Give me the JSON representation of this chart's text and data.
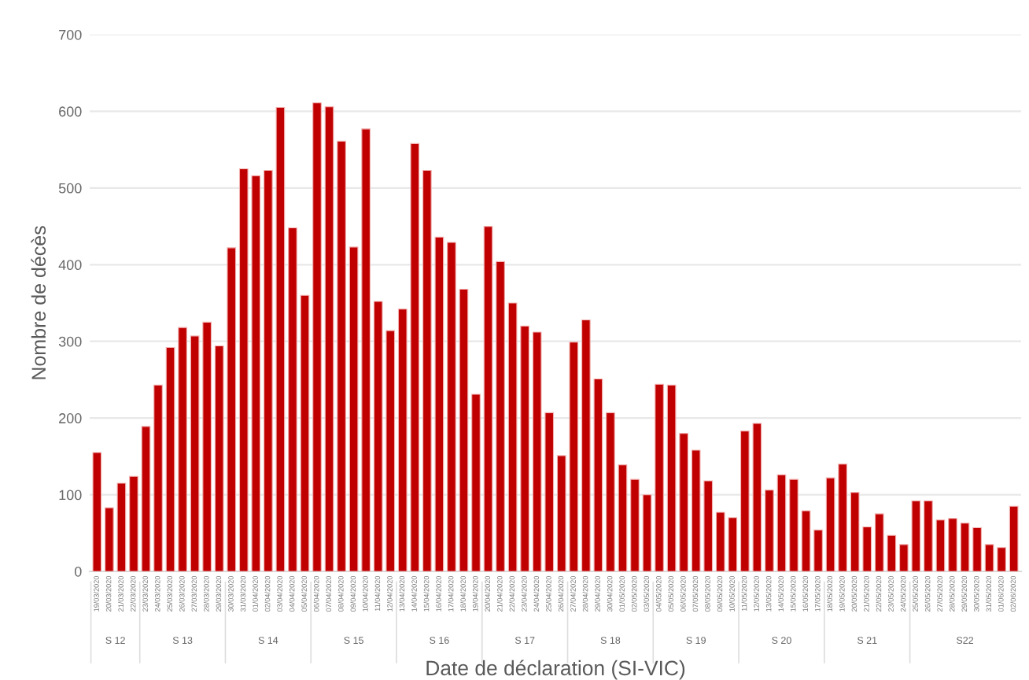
{
  "chart_data": {
    "type": "bar",
    "xlabel": "Date de déclaration (SI-VIC)",
    "ylabel": "Nombre de décès",
    "categories": [
      "19/03/2020",
      "20/03/2020",
      "21/03/2020",
      "22/03/2020",
      "23/03/2020",
      "24/03/2020",
      "25/03/2020",
      "26/03/2020",
      "27/03/2020",
      "28/03/2020",
      "29/03/2020",
      "30/03/2020",
      "31/03/2020",
      "01/04/2020",
      "02/04/2020",
      "03/04/2020",
      "04/04/2020",
      "05/04/2020",
      "06/04/2020",
      "07/04/2020",
      "08/04/2020",
      "09/04/2020",
      "10/04/2020",
      "11/04/2020",
      "12/04/2020",
      "13/04/2020",
      "14/04/2020",
      "15/04/2020",
      "16/04/2020",
      "17/04/2020",
      "18/04/2020",
      "19/04/2020",
      "20/04/2020",
      "21/04/2020",
      "22/04/2020",
      "23/04/2020",
      "24/04/2020",
      "25/04/2020",
      "26/04/2020",
      "27/04/2020",
      "28/04/2020",
      "29/04/2020",
      "30/04/2020",
      "01/05/2020",
      "02/05/2020",
      "03/05/2020",
      "04/05/2020",
      "05/05/2020",
      "06/05/2020",
      "07/05/2020",
      "08/05/2020",
      "09/05/2020",
      "10/05/2020",
      "11/05/2020",
      "12/05/2020",
      "13/05/2020",
      "14/05/2020",
      "15/05/2020",
      "16/05/2020",
      "17/05/2020",
      "18/05/2020",
      "19/05/2020",
      "20/05/2020",
      "21/05/2020",
      "22/05/2020",
      "23/05/2020",
      "24/05/2020",
      "25/05/2020",
      "26/05/2020",
      "27/05/2020",
      "28/05/2020",
      "29/05/2020",
      "30/05/2020",
      "31/05/2020",
      "01/06/2020",
      "02/06/2020"
    ],
    "values": [
      155,
      83,
      115,
      124,
      189,
      243,
      292,
      318,
      307,
      325,
      294,
      422,
      525,
      516,
      523,
      605,
      448,
      360,
      611,
      606,
      561,
      423,
      577,
      352,
      314,
      342,
      558,
      523,
      436,
      429,
      368,
      231,
      450,
      404,
      350,
      320,
      312,
      207,
      151,
      299,
      328,
      251,
      207,
      139,
      120,
      100,
      244,
      243,
      180,
      158,
      118,
      77,
      70,
      183,
      193,
      106,
      126,
      120,
      79,
      54,
      122,
      140,
      103,
      58,
      75,
      47,
      35,
      92,
      92,
      67,
      69,
      63,
      57,
      35,
      31,
      85
    ],
    "color": "#c00000",
    "ylim": [
      0,
      700
    ],
    "yticks": [
      0,
      100,
      200,
      300,
      400,
      500,
      600,
      700
    ],
    "grid": "y",
    "annotations": [
      "S 12",
      "S 13",
      "S 14",
      "S 15",
      "S 16",
      "S 17",
      "S 18",
      "S 19",
      "S 20",
      "S 21",
      "S22"
    ]
  }
}
